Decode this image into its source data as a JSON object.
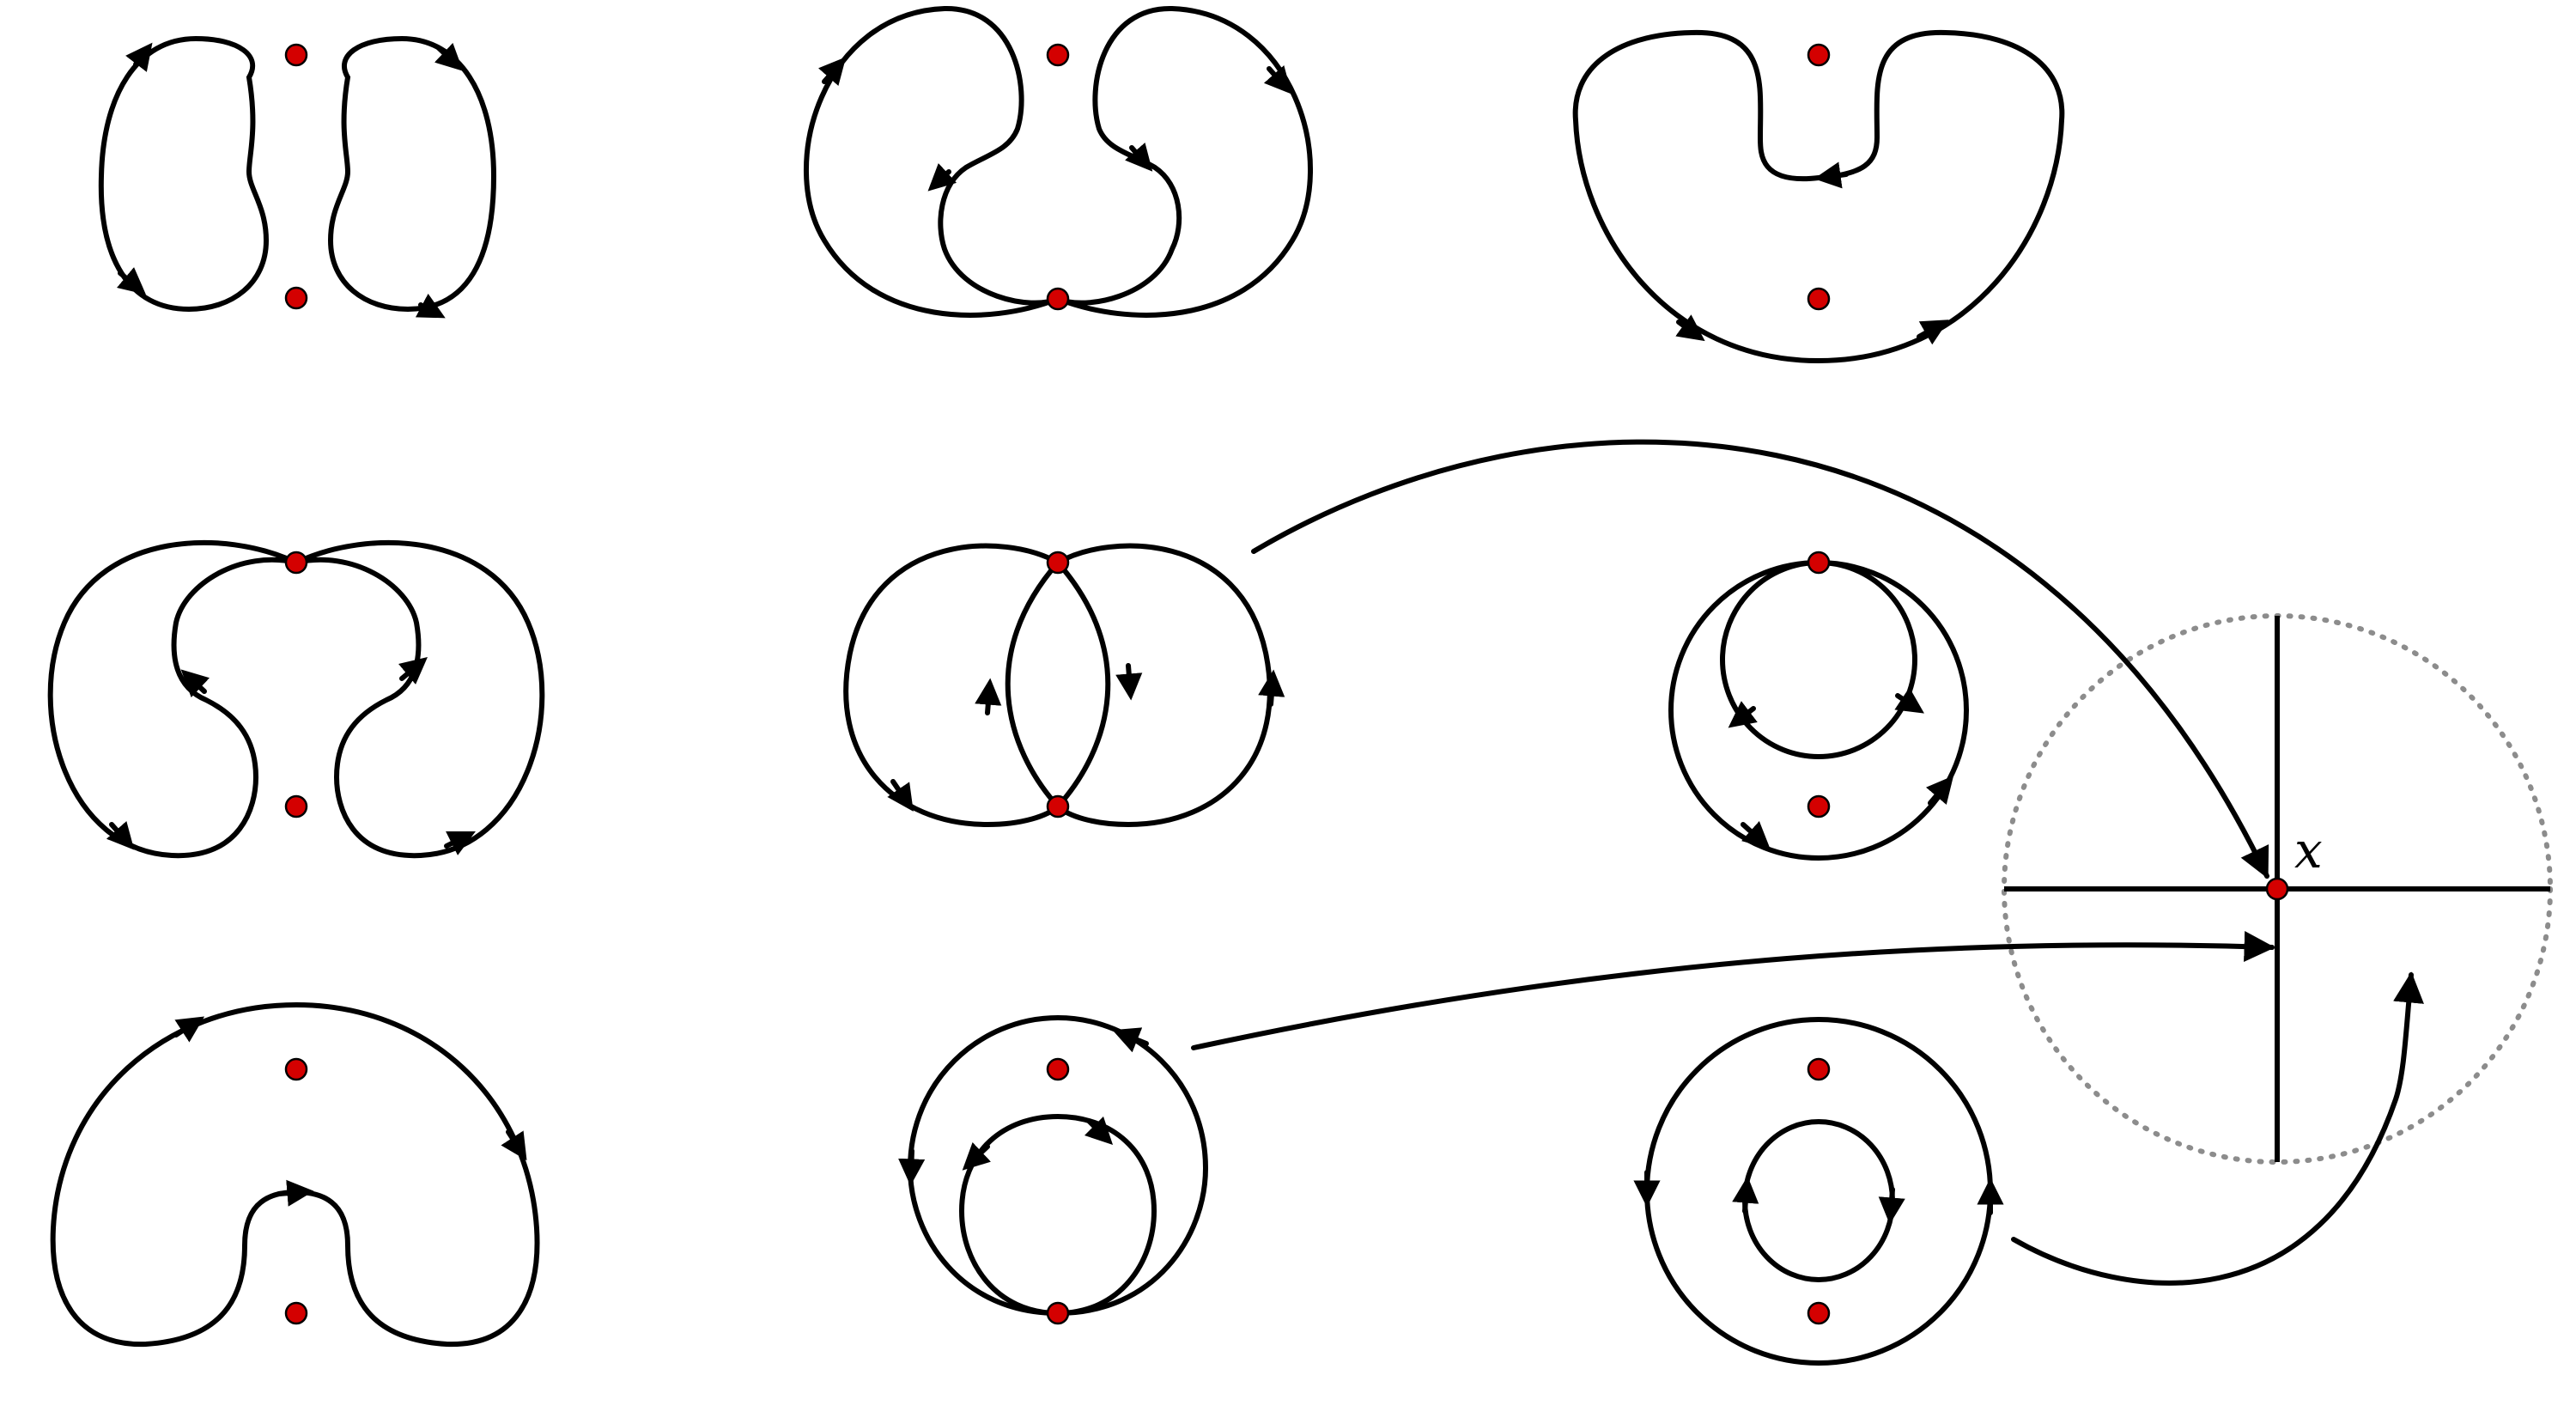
{
  "figure": {
    "kind": "curve-configuration-diagram",
    "panel_count": 9,
    "marked_point_label": "x",
    "colors": {
      "stroke": "#000000",
      "marked_point": "#d40000",
      "neighborhood_ring": "#8c8c8c",
      "background": "#ffffff"
    },
    "panels": [
      {
        "row": 1,
        "col": 1,
        "description": "two-separate-oriented-loops"
      },
      {
        "row": 1,
        "col": 2,
        "description": "two-loops-through-lower-point"
      },
      {
        "row": 1,
        "col": 3,
        "description": "single-kidney-loop"
      },
      {
        "row": 2,
        "col": 1,
        "description": "two-loops-through-upper-point"
      },
      {
        "row": 2,
        "col": 2,
        "description": "two-loops-through-both-points"
      },
      {
        "row": 2,
        "col": 3,
        "description": "nested-loops-through-upper-point"
      },
      {
        "row": 3,
        "col": 1,
        "description": "single-arch-loop"
      },
      {
        "row": 3,
        "col": 2,
        "description": "nested-loops-through-lower-point"
      },
      {
        "row": 3,
        "col": 3,
        "description": "concentric-loops-around-point"
      }
    ],
    "inset": {
      "description": "local-picture-at-marked-point",
      "ring_style": "dotted",
      "axes": "cross"
    }
  }
}
